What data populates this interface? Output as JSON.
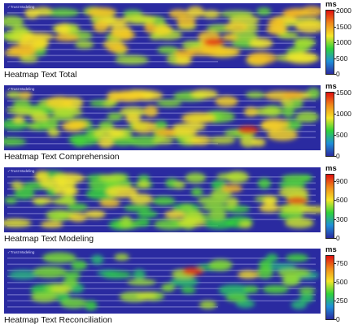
{
  "chart_data": [
    {
      "type": "heatmap",
      "title": "Heatmap Text Total",
      "unit": "ms",
      "range": [
        0,
        2000
      ],
      "ticks": [
        0,
        500,
        1000,
        1500,
        2000
      ],
      "doc_label": "Trust Modeling",
      "colormap": [
        "#2a2aa0",
        "#1f8fd8",
        "#2fd23a",
        "#f5e62a",
        "#f08a1a",
        "#e01010"
      ]
    },
    {
      "type": "heatmap",
      "title": "Heatmap Text Comprehension",
      "unit": "ms",
      "range": [
        0,
        1500
      ],
      "ticks": [
        0,
        500,
        1000,
        1500
      ],
      "doc_label": "Trust Modeling",
      "colormap": [
        "#2a2aa0",
        "#1f8fd8",
        "#2fd23a",
        "#f5e62a",
        "#f08a1a",
        "#e01010"
      ]
    },
    {
      "type": "heatmap",
      "title": "Heatmap Text Modeling",
      "unit": "ms",
      "range": [
        0,
        1000
      ],
      "ticks": [
        0,
        300,
        600,
        900
      ],
      "doc_label": "Trust Modeling",
      "colormap": [
        "#2a2aa0",
        "#1f8fd8",
        "#2fd23a",
        "#f5e62a",
        "#f08a1a",
        "#e01010"
      ]
    },
    {
      "type": "heatmap",
      "title": "Heatmap Text Reconciliation",
      "unit": "ms",
      "range": [
        0,
        850
      ],
      "ticks": [
        0,
        250,
        500,
        750
      ],
      "doc_label": "Trust Modeling",
      "colormap": [
        "#2a2aa0",
        "#1f8fd8",
        "#2fd23a",
        "#f5e62a",
        "#f08a1a",
        "#e01010"
      ]
    }
  ]
}
